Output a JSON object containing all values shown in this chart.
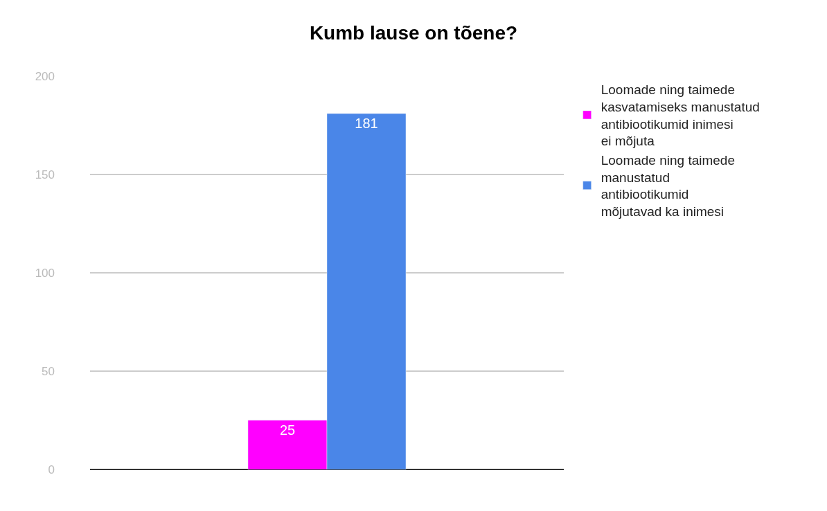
{
  "chart_data": {
    "type": "bar",
    "title": "Kumb lause on tõene?",
    "categories": [
      null
    ],
    "series": [
      {
        "name": "Loomade ning taimede kasvatamiseks manustatud antibiootikumid inimesi ei mõjuta",
        "color": "#ff00ff",
        "values": [
          25
        ]
      },
      {
        "name": "Loomade ning taimede manustatud antibiootikumid mõjutavad ka inimesi",
        "color": "#4a86e8",
        "values": [
          181
        ]
      }
    ],
    "ylim": [
      0,
      200
    ],
    "yticks": [
      0,
      50,
      100,
      150,
      200
    ],
    "grid": "y",
    "legend": "top right",
    "data_labels": true
  }
}
